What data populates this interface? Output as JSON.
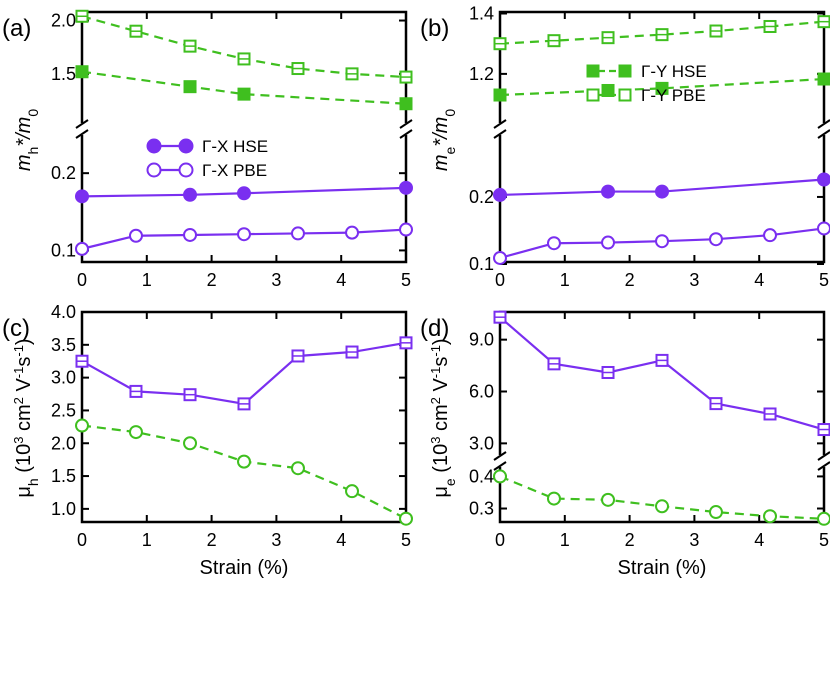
{
  "colors": {
    "purple": "#7a2ff0",
    "green": "#3fbf1f",
    "axis": "#000000"
  },
  "chart_data": [
    {
      "panel": "(a)",
      "type": "line",
      "xlabel": "",
      "ylabel_main": "m",
      "ylabel_sub": "h",
      "ylabel_rest": "*/m",
      "ylabel_sub2": "0",
      "xlim": [
        0,
        5
      ],
      "xticks": [
        "0",
        "1",
        "2",
        "3",
        "4",
        "5"
      ],
      "segments": [
        {
          "ylim": [
            1.18,
            2.08
          ],
          "yticks": [
            {
              "v": 1.5,
              "t": "1.5"
            },
            {
              "v": 2.0,
              "t": "2.0"
            }
          ]
        },
        {
          "ylim": [
            0.085,
            0.23
          ],
          "yticks": [
            {
              "v": 0.1,
              "t": "0.1"
            },
            {
              "v": 0.2,
              "t": "0.2"
            }
          ]
        }
      ],
      "legend": [
        {
          "label": "Γ-X HSE",
          "series": 2
        },
        {
          "label": "Γ-X PBE",
          "series": 3
        }
      ],
      "series": [
        {
          "name": "Γ-Y HSE",
          "color": "green",
          "marker": "square",
          "filled": true,
          "dash": true,
          "segment": 0,
          "x": [
            0,
            1.667,
            2.5,
            5
          ],
          "y": [
            1.52,
            1.38,
            1.31,
            1.22
          ]
        },
        {
          "name": "Γ-Y PBE",
          "color": "green",
          "marker": "square",
          "filled": false,
          "dash": true,
          "segment": 0,
          "x": [
            0,
            0.833,
            1.667,
            2.5,
            3.333,
            4.167,
            5
          ],
          "y": [
            2.04,
            1.9,
            1.76,
            1.64,
            1.55,
            1.5,
            1.47
          ]
        },
        {
          "name": "Γ-X HSE",
          "color": "purple",
          "marker": "circle",
          "filled": true,
          "dash": false,
          "segment": 1,
          "x": [
            0,
            1.667,
            2.5,
            5
          ],
          "y": [
            0.17,
            0.172,
            0.174,
            0.181
          ]
        },
        {
          "name": "Γ-X PBE",
          "color": "purple",
          "marker": "circle",
          "filled": false,
          "dash": false,
          "segment": 1,
          "x": [
            0,
            0.833,
            1.667,
            2.5,
            3.333,
            4.167,
            5
          ],
          "y": [
            0.102,
            0.119,
            0.12,
            0.121,
            0.122,
            0.123,
            0.127
          ]
        }
      ]
    },
    {
      "panel": "(b)",
      "type": "line",
      "xlabel": "",
      "ylabel_main": "m",
      "ylabel_sub": "e",
      "ylabel_rest": "*/m",
      "ylabel_sub2": "0",
      "xlim": [
        0,
        5
      ],
      "xticks": [
        "0",
        "1",
        "2",
        "3",
        "4",
        "5"
      ],
      "segments": [
        {
          "ylim": [
            1.087,
            1.405
          ],
          "yticks": [
            {
              "v": 1.2,
              "t": "1.2"
            },
            {
              "v": 1.4,
              "t": "1.4"
            }
          ]
        },
        {
          "ylim": [
            0.103,
            0.27
          ],
          "yticks": [
            {
              "v": 0.1,
              "t": "0.1"
            },
            {
              "v": 0.2,
              "t": "0.2"
            }
          ]
        }
      ],
      "legend": [
        {
          "label": "Γ-Y HSE",
          "series": 0
        },
        {
          "label": "Γ-Y PBE",
          "series": 1
        }
      ],
      "series": [
        {
          "name": "Γ-Y HSE",
          "color": "green",
          "marker": "square",
          "filled": true,
          "dash": true,
          "segment": 0,
          "x": [
            0,
            1.667,
            2.5,
            5
          ],
          "y": [
            1.13,
            1.145,
            1.152,
            1.183
          ]
        },
        {
          "name": "Γ-Y PBE",
          "color": "green",
          "marker": "square",
          "filled": false,
          "dash": true,
          "segment": 0,
          "x": [
            0,
            0.833,
            1.667,
            2.5,
            3.333,
            4.167,
            5
          ],
          "y": [
            1.3,
            1.31,
            1.32,
            1.33,
            1.342,
            1.357,
            1.373
          ]
        },
        {
          "name": "Γ-X HSE",
          "color": "purple",
          "marker": "circle",
          "filled": true,
          "dash": false,
          "segment": 1,
          "x": [
            0,
            1.667,
            2.5,
            5
          ],
          "y": [
            0.203,
            0.208,
            0.208,
            0.226
          ]
        },
        {
          "name": "Γ-X PBE",
          "color": "purple",
          "marker": "circle",
          "filled": false,
          "dash": false,
          "segment": 1,
          "x": [
            0,
            0.833,
            1.667,
            2.5,
            3.333,
            4.167,
            5
          ],
          "y": [
            0.109,
            0.131,
            0.132,
            0.134,
            0.137,
            0.143,
            0.153
          ]
        }
      ]
    },
    {
      "panel": "(c)",
      "type": "line",
      "xlabel": "Strain (%)",
      "ylabel_main": "μ",
      "ylabel_sub": "h",
      "ylabel_rest": " (10",
      "ylabel_tail": "3",
      "ylabel_units": " cm",
      "ylabel_pow2": "2",
      "ylabel_v": " V",
      "ylabel_pow_v": "-1",
      "ylabel_s": "s",
      "ylabel_pow_s": "-1",
      "ylabel_close": ")",
      "xlim": [
        0,
        5
      ],
      "xticks": [
        "0",
        "1",
        "2",
        "3",
        "4",
        "5"
      ],
      "segments": [
        {
          "ylim": [
            0.8,
            4.0
          ],
          "yticks": [
            {
              "v": 1.0,
              "t": "1.0"
            },
            {
              "v": 1.5,
              "t": "1.5"
            },
            {
              "v": 2.0,
              "t": "2.0"
            },
            {
              "v": 2.5,
              "t": "2.5"
            },
            {
              "v": 3.0,
              "t": "3.0"
            },
            {
              "v": 3.5,
              "t": "3.5"
            },
            {
              "v": 4.0,
              "t": "4.0"
            }
          ]
        }
      ],
      "legend": [],
      "series": [
        {
          "name": "Γ-Y",
          "color": "purple",
          "marker": "square",
          "filled": false,
          "dash": false,
          "segment": 0,
          "x": [
            0,
            0.833,
            1.667,
            2.5,
            3.333,
            4.167,
            5
          ],
          "y": [
            3.25,
            2.79,
            2.74,
            2.6,
            3.33,
            3.39,
            3.53
          ]
        },
        {
          "name": "Γ-X",
          "color": "green",
          "marker": "circle",
          "filled": false,
          "dash": true,
          "segment": 0,
          "x": [
            0,
            0.833,
            1.667,
            2.5,
            3.333,
            4.167,
            5
          ],
          "y": [
            2.27,
            2.17,
            2.0,
            1.72,
            1.62,
            1.27,
            0.85
          ]
        }
      ]
    },
    {
      "panel": "(d)",
      "type": "line",
      "xlabel": "Strain (%)",
      "ylabel_main": "μ",
      "ylabel_sub": "e",
      "ylabel_rest": " (10",
      "ylabel_tail": "3",
      "ylabel_units": " cm",
      "ylabel_pow2": "2",
      "ylabel_v": " V",
      "ylabel_pow_v": "-1",
      "ylabel_s": "s",
      "ylabel_pow_s": "-1",
      "ylabel_close": ")",
      "xlim": [
        0,
        5
      ],
      "xticks": [
        "0",
        "1",
        "2",
        "3",
        "4",
        "5"
      ],
      "segments": [
        {
          "ylim": [
            2.5,
            10.6
          ],
          "yticks": [
            {
              "v": 3.0,
              "t": "3.0"
            },
            {
              "v": 6.0,
              "t": "6.0"
            },
            {
              "v": 9.0,
              "t": "9.0"
            }
          ]
        },
        {
          "ylim": [
            0.258,
            0.42
          ],
          "yticks": [
            {
              "v": 0.3,
              "t": "0.3"
            },
            {
              "v": 0.4,
              "t": "0.4"
            }
          ]
        }
      ],
      "legend": [],
      "series": [
        {
          "name": "Γ-X",
          "color": "purple",
          "marker": "square",
          "filled": false,
          "dash": false,
          "segment": 0,
          "x": [
            0,
            0.833,
            1.667,
            2.5,
            3.333,
            4.167,
            5
          ],
          "y": [
            10.3,
            7.6,
            7.1,
            7.8,
            5.3,
            4.7,
            3.8
          ]
        },
        {
          "name": "Γ-Y",
          "color": "green",
          "marker": "circle",
          "filled": false,
          "dash": true,
          "segment": 1,
          "x": [
            0,
            0.833,
            1.667,
            2.5,
            3.333,
            4.167,
            5
          ],
          "y": [
            0.4,
            0.331,
            0.327,
            0.307,
            0.289,
            0.276,
            0.268
          ]
        }
      ]
    }
  ]
}
